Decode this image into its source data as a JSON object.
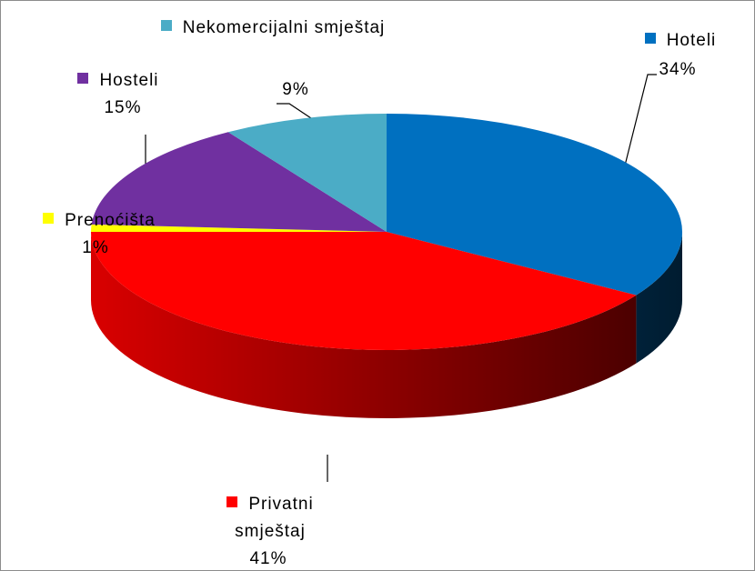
{
  "chart_data": {
    "type": "pie",
    "categories": [
      "Hoteli",
      "Privatni smještaj",
      "Prenoćišta",
      "Hosteli",
      "Nekomercijalni smještaj"
    ],
    "values": [
      34,
      41,
      1,
      15,
      9
    ],
    "value_labels": [
      "34%",
      "41%",
      "1%",
      "15%",
      "9%"
    ],
    "colors": [
      "#0070c0",
      "#ff0000",
      "#ffff00",
      "#7030a0",
      "#4bacc6"
    ]
  }
}
